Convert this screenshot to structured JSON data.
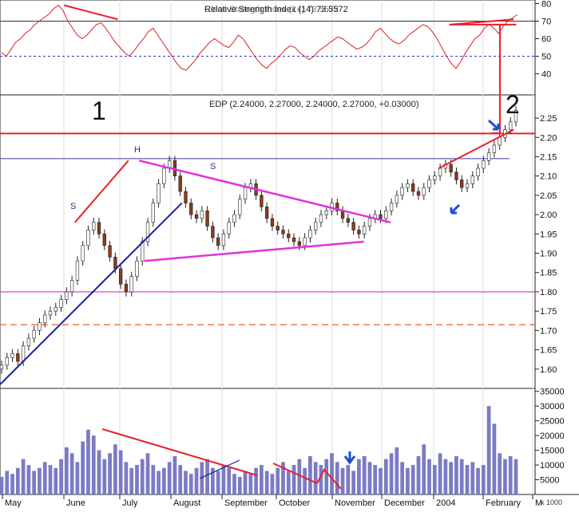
{
  "chart_data": [
    {
      "panel": "rsi",
      "type": "line",
      "title": "Relative Strength Index (14) 73.5572",
      "overlapping_legend_text": "Close Strength Index (14) 73.5572",
      "y_ticks": [
        40,
        50,
        60,
        70,
        80
      ],
      "ylim": [
        28,
        82
      ],
      "reference_lines": [
        70,
        50
      ],
      "series": [
        {
          "values": [
            52,
            50,
            54,
            58,
            60,
            63,
            65,
            68,
            70,
            72,
            74,
            77,
            79,
            76,
            70,
            66,
            62,
            60,
            62,
            65,
            68,
            69,
            66,
            62,
            58,
            55,
            52,
            50,
            53,
            57,
            60,
            64,
            66,
            62,
            58,
            54,
            50,
            46,
            43,
            42,
            45,
            48,
            52,
            55,
            58,
            60,
            58,
            56,
            55,
            58,
            62,
            60,
            56,
            52,
            48,
            45,
            43,
            46,
            48,
            51,
            54,
            56,
            55,
            52,
            50,
            48,
            50,
            53,
            55,
            57,
            59,
            61,
            60,
            58,
            56,
            54,
            55,
            57,
            60,
            64,
            66,
            63,
            60,
            58,
            57,
            59,
            62,
            64,
            66,
            68,
            67,
            64,
            60,
            55,
            50,
            46,
            43,
            47,
            52,
            56,
            60,
            62,
            66,
            68,
            66,
            63,
            67,
            70,
            72,
            73.6
          ]
        }
      ],
      "trendlines": [
        {
          "from": [
            0.12,
            79
          ],
          "to": [
            0.22,
            71
          ]
        },
        {
          "from": [
            0.84,
            68
          ],
          "to": [
            0.96,
            71
          ]
        },
        {
          "from": [
            0.84,
            68
          ],
          "to": [
            0.965,
            68
          ]
        }
      ]
    },
    {
      "panel": "price",
      "type": "candlestick",
      "title": "EDP (2.24000, 2.27000, 2.24000, 2.27000, +0.03000)",
      "y_ticks": [
        1.6,
        1.65,
        1.7,
        1.75,
        1.8,
        1.85,
        1.9,
        1.95,
        2.0,
        2.05,
        2.1,
        2.15,
        2.2,
        2.25
      ],
      "ylim": [
        1.55,
        2.31
      ],
      "x_labels": [
        "May",
        "June",
        "July",
        "August",
        "September",
        "October",
        "November",
        "December",
        "2004",
        "February",
        "M"
      ],
      "annotations": [
        "1",
        "2",
        "H",
        "S",
        "S"
      ],
      "series": [
        {
          "name": "EDP",
          "close": [
            1.61,
            1.63,
            1.64,
            1.62,
            1.66,
            1.68,
            1.7,
            1.72,
            1.74,
            1.75,
            1.76,
            1.78,
            1.8,
            1.83,
            1.88,
            1.92,
            1.96,
            1.98,
            1.95,
            1.92,
            1.89,
            1.86,
            1.82,
            1.8,
            1.84,
            1.88,
            1.93,
            1.98,
            2.03,
            2.08,
            2.12,
            2.14,
            2.1,
            2.06,
            2.03,
            2.0,
            1.99,
            2.01,
            1.97,
            1.94,
            1.92,
            1.95,
            1.98,
            2.0,
            2.04,
            2.07,
            2.08,
            2.05,
            2.02,
            1.99,
            1.97,
            1.96,
            1.95,
            1.94,
            1.93,
            1.92,
            1.94,
            1.96,
            1.98,
            2.0,
            2.01,
            2.03,
            2.01,
            1.99,
            1.98,
            1.96,
            1.95,
            1.97,
            1.99,
            2.0,
            1.99,
            2.01,
            2.03,
            2.05,
            2.07,
            2.08,
            2.06,
            2.05,
            2.07,
            2.09,
            2.1,
            2.12,
            2.13,
            2.11,
            2.09,
            2.07,
            2.08,
            2.1,
            2.12,
            2.14,
            2.16,
            2.18,
            2.2,
            2.22,
            2.24,
            2.27
          ]
        }
      ],
      "horizontal_lines": [
        {
          "level": 2.21,
          "color": "#e8202a"
        },
        {
          "level": 2.145,
          "color": "#6060b0"
        },
        {
          "level": 1.8,
          "color": "#cc33cc"
        },
        {
          "level": 1.715,
          "color": "#e8602a",
          "dashed": true
        }
      ],
      "trendlines": [
        {
          "color": "#1a22a0",
          "from": [
            0.0,
            1.56
          ],
          "to": [
            0.34,
            2.03
          ]
        },
        {
          "color": "#dd33dd",
          "from": [
            0.26,
            2.14
          ],
          "to": [
            0.73,
            1.98
          ]
        },
        {
          "color": "#dd33dd",
          "from": [
            0.27,
            1.88
          ],
          "to": [
            0.68,
            1.93
          ]
        },
        {
          "color": "#e8202a",
          "from": [
            0.14,
            1.98
          ],
          "to": [
            0.24,
            2.14
          ]
        },
        {
          "color": "#e8202a",
          "from": [
            0.82,
            2.12
          ],
          "to": [
            0.96,
            2.22
          ]
        }
      ]
    },
    {
      "panel": "volume",
      "type": "bar",
      "y_ticks": [
        5000,
        10000,
        15000,
        20000,
        25000,
        30000,
        35000
      ],
      "y_tick_labels": [
        "5000",
        "10000",
        "15000",
        "20000",
        "25000",
        "30000",
        "35000"
      ],
      "unit_label": "x 1000",
      "ylim": [
        0,
        36000
      ],
      "values": [
        6000,
        8000,
        7000,
        9000,
        12000,
        10000,
        8000,
        9000,
        11000,
        10000,
        9000,
        12000,
        16000,
        14000,
        11000,
        18000,
        22000,
        20000,
        15000,
        12000,
        14000,
        17000,
        15000,
        11000,
        9000,
        10000,
        12000,
        14000,
        10000,
        8000,
        9000,
        11000,
        13000,
        10000,
        8000,
        7000,
        9000,
        11000,
        12000,
        9000,
        8000,
        10000,
        9000,
        7000,
        6000,
        8000,
        7000,
        9000,
        10000,
        8000,
        7000,
        9000,
        11000,
        8000,
        10000,
        12000,
        9000,
        13000,
        11000,
        10000,
        12000,
        14000,
        11000,
        9000,
        10000,
        8000,
        12000,
        13000,
        11000,
        10000,
        9000,
        12000,
        14000,
        16000,
        11000,
        9000,
        10000,
        13000,
        17000,
        12000,
        10000,
        14000,
        12000,
        11000,
        13000,
        12000,
        10000,
        11000,
        9000,
        10000,
        30000,
        24000,
        14000,
        12000,
        13000,
        12000
      ]
    }
  ]
}
